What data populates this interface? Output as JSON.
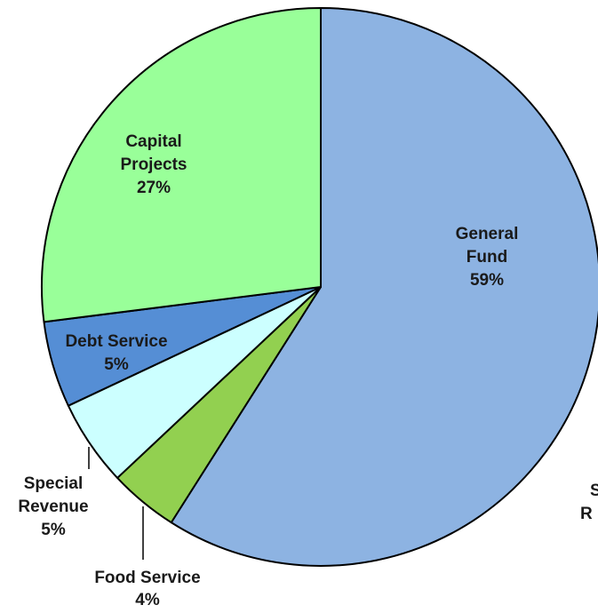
{
  "chart_data": {
    "type": "pie",
    "title": "",
    "start_angle_deg": 0,
    "direction": "clockwise",
    "edge_color": "#000000",
    "categories": [
      "General Fund",
      "Food Service",
      "Special Revenue",
      "Debt Service",
      "Capital Projects",
      "Special Revenue"
    ],
    "values": [
      59,
      4,
      5,
      5,
      27,
      0
    ],
    "slices": [
      {
        "name": "General Fund",
        "value": 59,
        "color": "#8db3e2",
        "label_lines": [
          "General",
          "Fund",
          "59%"
        ]
      },
      {
        "name": "Food Service",
        "value": 4,
        "color": "#92d050",
        "label_lines": [
          "Food Service",
          "4%"
        ]
      },
      {
        "name": "Special Revenue",
        "value": 5,
        "color": "#ccffff",
        "label_lines": [
          "Special",
          "Revenue",
          "5%"
        ]
      },
      {
        "name": "Debt Service",
        "value": 5,
        "color": "#558ed5",
        "label_lines": [
          "Debt Service",
          "5%"
        ]
      },
      {
        "name": "Capital Projects",
        "value": 27,
        "color": "#99ff99",
        "label_lines": [
          "Capital",
          "Projects",
          "27%"
        ]
      }
    ],
    "partial_label": {
      "lines": [
        "S",
        "R"
      ]
    },
    "legend": "none"
  }
}
